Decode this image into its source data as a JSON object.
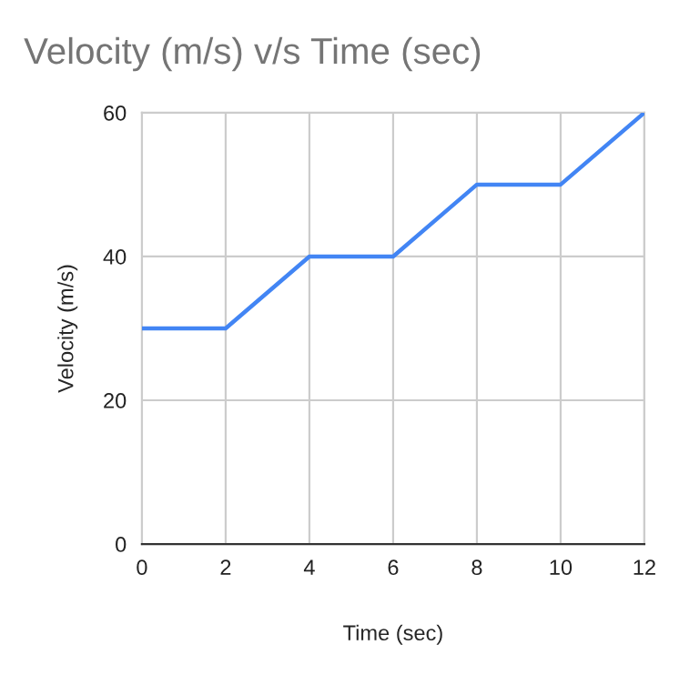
{
  "chart_data": {
    "type": "line",
    "title": "Velocity (m/s) v/s Time (sec)",
    "xlabel": "Time (sec)",
    "ylabel": "Velocity (m/s)",
    "x": [
      0,
      2,
      4,
      6,
      8,
      10,
      12
    ],
    "series": [
      {
        "color": "#4285f4",
        "values": [
          30,
          30,
          40,
          40,
          50,
          50,
          60
        ]
      }
    ],
    "xlim": [
      0,
      12
    ],
    "xticks": [
      0,
      2,
      4,
      6,
      8,
      10,
      12
    ],
    "ylim": [
      0,
      60
    ],
    "yticks": [
      0,
      20,
      40,
      60
    ],
    "grid": true,
    "legend": false,
    "marker": "none",
    "line_style": "solid"
  }
}
